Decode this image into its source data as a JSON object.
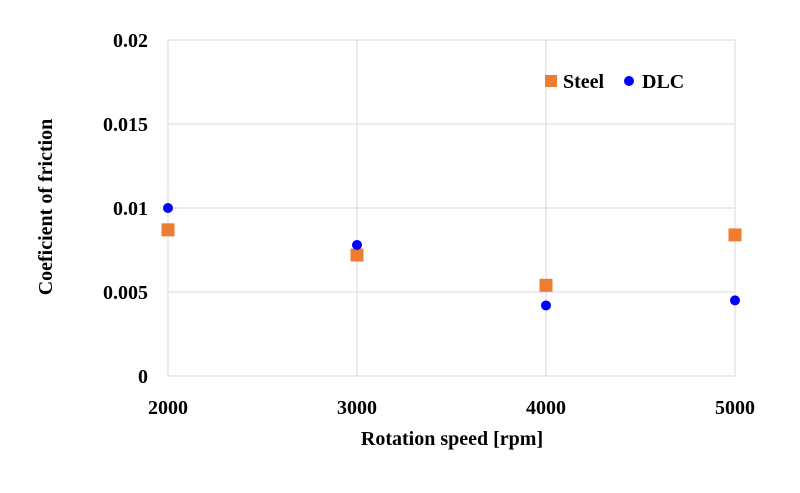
{
  "chart_data": {
    "type": "scatter",
    "title": "",
    "xlabel": "Rotation speed [rpm]",
    "ylabel": "Coeficient of friction",
    "x": [
      2000,
      3000,
      4000,
      5000
    ],
    "xlim": [
      2000,
      5000
    ],
    "ylim": [
      0,
      0.02
    ],
    "x_ticks": [
      "2000",
      "3000",
      "4000",
      "5000"
    ],
    "y_ticks": [
      "0",
      "0.005",
      "0.01",
      "0.015",
      "0.02"
    ],
    "grid": true,
    "legend": "top-right inside plot",
    "series": [
      {
        "name": "Steel",
        "marker": "square",
        "color": "#ED7D31",
        "values": [
          0.0087,
          0.0072,
          0.0054,
          0.0084
        ]
      },
      {
        "name": "DLC",
        "marker": "circle",
        "color": "#0000FF",
        "values": [
          0.01,
          0.0078,
          0.0042,
          0.0045
        ]
      }
    ]
  }
}
